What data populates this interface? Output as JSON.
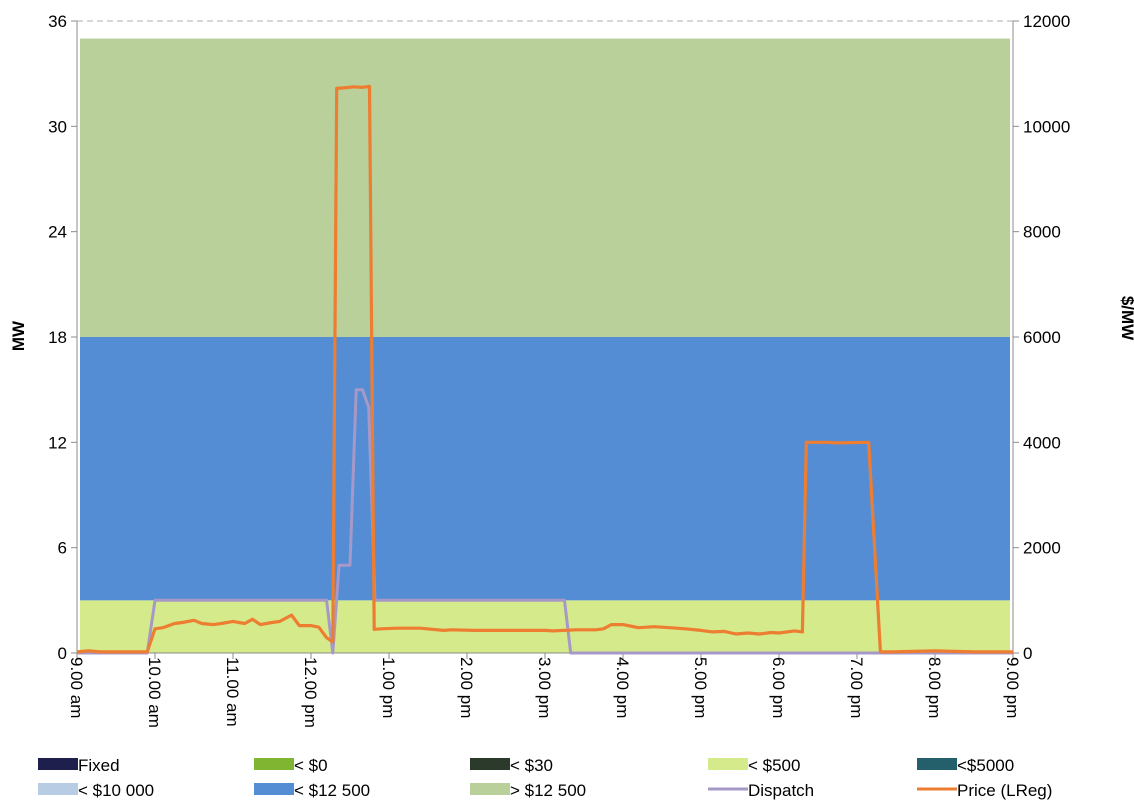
{
  "chart_data": {
    "type": "area",
    "title": "",
    "xlabel": "",
    "ylabel": "MW",
    "y2label": "$/MW",
    "ylim": [
      0,
      36
    ],
    "y2lim": [
      0,
      12000
    ],
    "yticks": [
      "0",
      "6",
      "12",
      "18",
      "24",
      "30",
      "36"
    ],
    "y2ticks": [
      "0",
      "2000",
      "4000",
      "6000",
      "8000",
      "10000",
      "12000"
    ],
    "xticks": [
      "9.00 am",
      "10.00 am",
      "11.00 am",
      "12.00 pm",
      "1.00 pm",
      "2.00 pm",
      "3.00 pm",
      "4.00 pm",
      "5.00 pm",
      "6.00 pm",
      "7.00 pm",
      "8.00 pm",
      "9.00 pm"
    ],
    "x_unit": "hours from 9.00 am",
    "x_range": [
      0,
      12
    ],
    "grid": "top line dashed",
    "legend_position": "bottom",
    "stacked_bands": [
      {
        "name": "< $500",
        "color": "#d5ea8b",
        "from": 0,
        "to": 3
      },
      {
        "name": "< $12 500",
        "color": "#548dd4",
        "from": 3,
        "to": 18
      },
      {
        "name": "> $12 500",
        "color": "#b9d09a",
        "from": 18,
        "to": 35
      }
    ],
    "series": [
      {
        "name": "Dispatch",
        "axis": "left",
        "color": "#a699c8",
        "x": [
          0,
          0.9,
          1.0,
          3.2,
          3.28,
          3.36,
          3.5,
          3.58,
          3.66,
          3.74,
          3.82,
          6.25,
          6.33,
          12
        ],
        "y": [
          0,
          0,
          3,
          3,
          0,
          5,
          5,
          15,
          15,
          14,
          3,
          3,
          0,
          0
        ]
      },
      {
        "name": "Price (LReg)",
        "axis": "right",
        "color": "#ed7d31",
        "x": [
          0,
          0.15,
          0.3,
          0.5,
          0.9,
          1.0,
          1.1,
          1.25,
          1.35,
          1.5,
          1.6,
          1.75,
          1.85,
          2.0,
          2.15,
          2.25,
          2.35,
          2.5,
          2.6,
          2.75,
          2.85,
          3.0,
          3.1,
          3.2,
          3.28,
          3.33,
          3.42,
          3.55,
          3.65,
          3.75,
          3.81,
          3.9,
          4.1,
          4.4,
          4.7,
          4.8,
          5.1,
          5.4,
          5.7,
          6.0,
          6.1,
          6.4,
          6.65,
          6.75,
          6.85,
          7.0,
          7.2,
          7.4,
          7.6,
          7.8,
          8.0,
          8.15,
          8.3,
          8.45,
          8.6,
          8.75,
          8.9,
          9.0,
          9.1,
          9.2,
          9.3,
          9.35,
          9.5,
          9.62,
          9.73,
          10.15,
          10.3,
          10.45,
          11.0,
          11.5,
          12.0
        ],
        "y": [
          20,
          40,
          20,
          20,
          20,
          460,
          480,
          560,
          580,
          620,
          560,
          540,
          560,
          600,
          560,
          640,
          540,
          580,
          600,
          720,
          520,
          520,
          490,
          290,
          210,
          10720,
          10730,
          10750,
          10740,
          10760,
          450,
          460,
          470,
          470,
          430,
          440,
          430,
          430,
          430,
          430,
          420,
          440,
          440,
          460,
          540,
          540,
          480,
          500,
          480,
          460,
          430,
          400,
          410,
          360,
          380,
          360,
          390,
          380,
          400,
          420,
          400,
          4000,
          4000,
          4000,
          3990,
          4000,
          20,
          20,
          40,
          20,
          20
        ]
      }
    ],
    "legend": [
      {
        "label": "Fixed",
        "color": "#1f1f4d",
        "kind": "box"
      },
      {
        "label": "< $0",
        "color": "#7fb530",
        "kind": "box"
      },
      {
        "label": "< $30",
        "color": "#2b3a2b",
        "kind": "box"
      },
      {
        "label": "< $500",
        "color": "#d5ea8b",
        "kind": "box"
      },
      {
        "label": "<$5000",
        "color": "#245f6c",
        "kind": "box"
      },
      {
        "label": "< $10 000",
        "color": "#b8cce4",
        "kind": "box"
      },
      {
        "label": "< $12 500",
        "color": "#548dd4",
        "kind": "box"
      },
      {
        "label": "> $12 500",
        "color": "#b9d09a",
        "kind": "box"
      },
      {
        "label": "Dispatch",
        "color": "#a699c8",
        "kind": "line"
      },
      {
        "label": "Price (LReg)",
        "color": "#ed7d31",
        "kind": "line"
      }
    ]
  }
}
